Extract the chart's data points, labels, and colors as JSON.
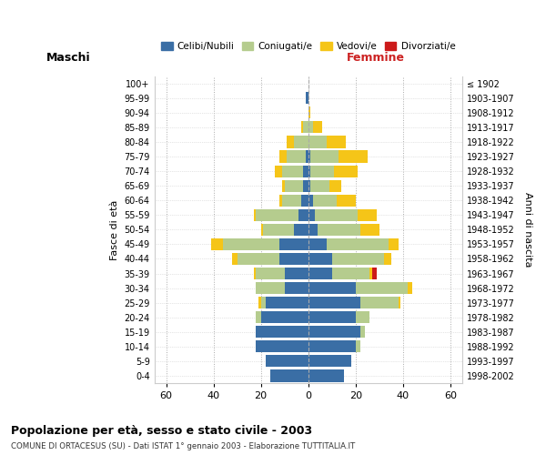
{
  "age_groups": [
    "0-4",
    "5-9",
    "10-14",
    "15-19",
    "20-24",
    "25-29",
    "30-34",
    "35-39",
    "40-44",
    "45-49",
    "50-54",
    "55-59",
    "60-64",
    "65-69",
    "70-74",
    "75-79",
    "80-84",
    "85-89",
    "90-94",
    "95-99",
    "100+"
  ],
  "birth_years": [
    "1998-2002",
    "1993-1997",
    "1988-1992",
    "1983-1987",
    "1978-1982",
    "1973-1977",
    "1968-1972",
    "1963-1967",
    "1958-1962",
    "1953-1957",
    "1948-1952",
    "1943-1947",
    "1938-1942",
    "1933-1937",
    "1928-1932",
    "1923-1927",
    "1918-1922",
    "1913-1917",
    "1908-1912",
    "1903-1907",
    "≤ 1902"
  ],
  "male_celibe": [
    16,
    18,
    22,
    22,
    20,
    18,
    10,
    10,
    12,
    12,
    6,
    4,
    3,
    2,
    2,
    1,
    0,
    0,
    0,
    1,
    0
  ],
  "male_coniugato": [
    0,
    0,
    0,
    0,
    2,
    2,
    12,
    12,
    18,
    24,
    13,
    18,
    8,
    8,
    9,
    8,
    6,
    2,
    0,
    0,
    0
  ],
  "male_vedovo": [
    0,
    0,
    0,
    0,
    0,
    1,
    0,
    1,
    2,
    5,
    1,
    1,
    1,
    1,
    3,
    3,
    3,
    1,
    0,
    0,
    0
  ],
  "male_divorziato": [
    0,
    0,
    0,
    0,
    0,
    0,
    0,
    0,
    0,
    0,
    0,
    0,
    0,
    0,
    0,
    0,
    0,
    0,
    0,
    0,
    0
  ],
  "female_celibe": [
    15,
    18,
    20,
    22,
    20,
    22,
    20,
    10,
    10,
    8,
    4,
    3,
    2,
    1,
    1,
    1,
    0,
    0,
    0,
    0,
    0
  ],
  "female_coniugato": [
    0,
    0,
    2,
    2,
    6,
    16,
    22,
    16,
    22,
    26,
    18,
    18,
    10,
    8,
    10,
    12,
    8,
    2,
    0,
    0,
    0
  ],
  "female_vedovo": [
    0,
    0,
    0,
    0,
    0,
    1,
    2,
    1,
    3,
    4,
    8,
    8,
    8,
    5,
    10,
    12,
    8,
    4,
    1,
    0,
    0
  ],
  "female_divorziato": [
    0,
    0,
    0,
    0,
    0,
    0,
    0,
    2,
    0,
    0,
    0,
    0,
    0,
    0,
    0,
    0,
    0,
    0,
    0,
    0,
    0
  ],
  "colors": {
    "celibe": "#3a6ea5",
    "coniugato": "#b5cc8e",
    "vedovo": "#f5c518",
    "divorziato": "#cc1a1a"
  },
  "xlim": 65,
  "title": "Popolazione per età, sesso e stato civile - 2003",
  "subtitle": "COMUNE DI ORTACESUS (SU) - Dati ISTAT 1° gennaio 2003 - Elaborazione TUTTITALIA.IT",
  "ylabel_left": "Fasce di età",
  "ylabel_right": "Anni di nascita",
  "xlabel_left": "Maschi",
  "xlabel_right": "Femmine",
  "legend_labels": [
    "Celibi/Nubili",
    "Coniugati/e",
    "Vedovi/e",
    "Divorziati/e"
  ]
}
